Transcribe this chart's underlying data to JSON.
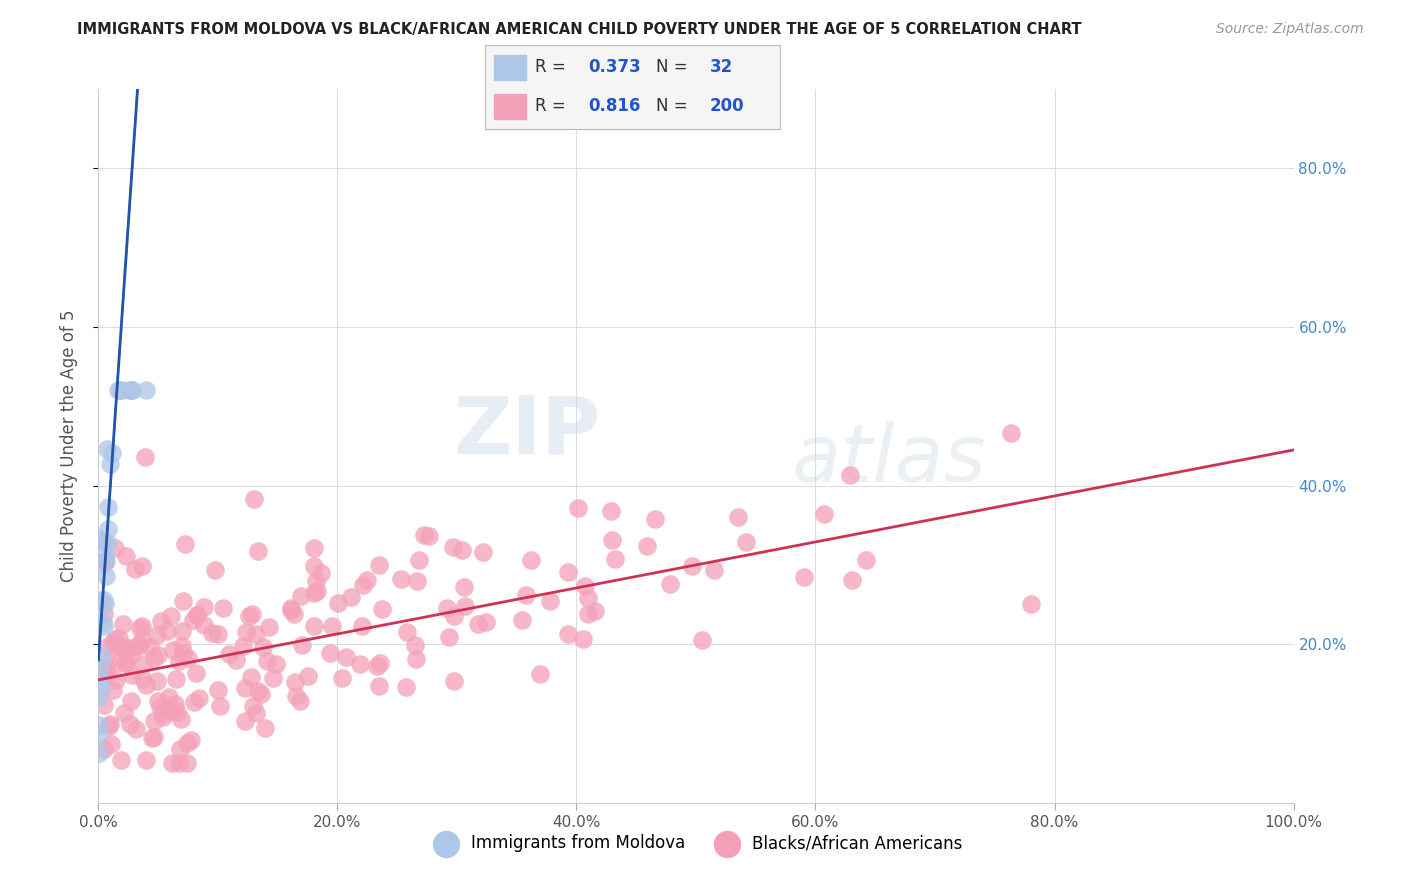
{
  "title": "IMMIGRANTS FROM MOLDOVA VS BLACK/AFRICAN AMERICAN CHILD POVERTY UNDER THE AGE OF 5 CORRELATION CHART",
  "source": "Source: ZipAtlas.com",
  "ylabel": "Child Poverty Under the Age of 5",
  "legend_label1": "Immigrants from Moldova",
  "legend_label2": "Blacks/African Americans",
  "R1": 0.373,
  "N1": 32,
  "R2": 0.816,
  "N2": 200,
  "color1": "#aec6e8",
  "color2": "#f4a0b8",
  "trendline1_color": "#2255aa",
  "trendline2_color": "#cc3355",
  "watermark_zip": "ZIP",
  "watermark_atlas": "atlas",
  "xlim": [
    0.0,
    1.0
  ],
  "ylim": [
    0.0,
    0.9
  ],
  "ytick_vals": [
    0.2,
    0.4,
    0.6,
    0.8
  ],
  "ytick_labels": [
    "20.0%",
    "40.0%",
    "60.0%",
    "80.0%"
  ],
  "xtick_vals": [
    0.0,
    0.2,
    0.4,
    0.6,
    0.8,
    1.0
  ],
  "xtick_labels": [
    "0.0%",
    "20.0%",
    "40.0%",
    "60.0%",
    "80.0%",
    "100.0%"
  ],
  "seed": 42,
  "pink_intercept": 0.155,
  "pink_slope": 0.29,
  "pink_noise": 0.07,
  "blue_intercept": 0.18,
  "blue_slope": 22.0,
  "blue_noise": 0.06,
  "background_color": "#ffffff",
  "grid_color": "#dddddd",
  "tick_color": "#4488cc",
  "title_color": "#222222",
  "source_color": "#999999"
}
